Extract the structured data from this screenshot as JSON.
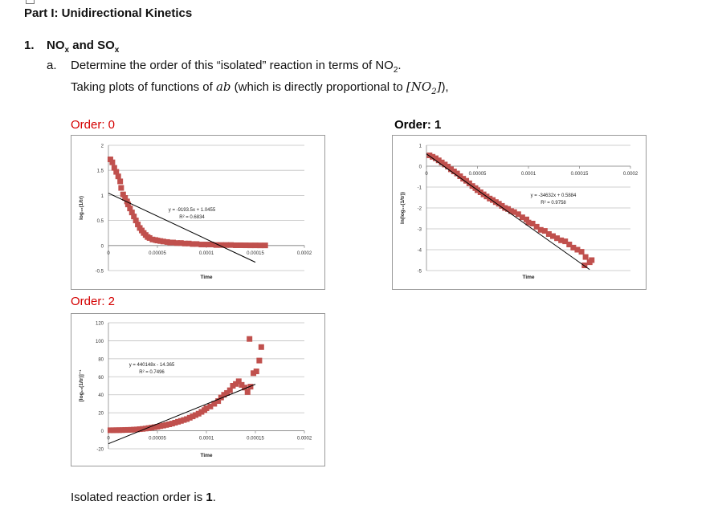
{
  "document": {
    "part_title": "Part I: Unidirectional Kinetics",
    "q1_number": "1.",
    "q1_title_prefix": "NO",
    "q1_title_sub1": "x",
    "q1_title_mid": " and SO",
    "q1_title_sub2": "x",
    "qa_label": "a.",
    "qa_text_prefix": "Determine the order of this “isolated” reaction in terms of NO",
    "qa_text_sub": "2",
    "qa_text_suffix": ".",
    "qa_line2_prefix": "Taking plots of functions of ",
    "qa_line2_math": "ab",
    "qa_line2_mid": " (which is directly proportional to ",
    "qa_line2_math2": "[NO",
    "qa_line2_math2_sub": "2",
    "qa_line2_math2_end": "]",
    "qa_line2_suffix": "),",
    "order0_label": "Order: 0",
    "order1_label": "Order: 1",
    "order2_label": "Order: 2",
    "conclusion_prefix": "Isolated reaction order is ",
    "conclusion_value": "1",
    "conclusion_suffix": "."
  },
  "chart_data": [
    {
      "id": "order0",
      "type": "scatter",
      "title": "",
      "xlabel": "Time",
      "ylabel": "log₁₀(1/tr)",
      "xlim": [
        0,
        0.0002
      ],
      "ylim": [
        -0.5,
        2
      ],
      "xticks": [
        0,
        5e-05,
        0.0001,
        0.00015,
        0.0002
      ],
      "xtick_labels": [
        "0",
        "0.00005",
        "0.0001",
        "0.00015",
        "0.0002"
      ],
      "yticks": [
        -0.5,
        0,
        0.5,
        1,
        1.5,
        2
      ],
      "ytick_labels": [
        "-0.5",
        "0",
        "0.5",
        "1",
        "1.5",
        "2"
      ],
      "grid": "horizontal",
      "marker_color": "#c0504d",
      "trendline": {
        "slope": -9193.5,
        "intercept": 1.0455,
        "x_range": [
          0,
          0.00015
        ]
      },
      "equation": "y = -9193.5x + 1.0455",
      "r2": "R² = 0.6834",
      "points": [
        [
          2e-06,
          1.72
        ],
        [
          4e-06,
          1.66
        ],
        [
          6e-06,
          1.55
        ],
        [
          8e-06,
          1.47
        ],
        [
          1e-05,
          1.38
        ],
        [
          1.2e-05,
          1.28
        ],
        [
          1.3e-05,
          1.15
        ],
        [
          1.5e-05,
          1.02
        ],
        [
          1.7e-05,
          0.95
        ],
        [
          1.9e-05,
          0.88
        ],
        [
          2e-05,
          0.82
        ],
        [
          2.2e-05,
          0.74
        ],
        [
          2.4e-05,
          0.66
        ],
        [
          2.6e-05,
          0.58
        ],
        [
          2.8e-05,
          0.5
        ],
        [
          3e-05,
          0.42
        ],
        [
          3.2e-05,
          0.35
        ],
        [
          3.4e-05,
          0.3
        ],
        [
          3.6e-05,
          0.25
        ],
        [
          3.8e-05,
          0.21
        ],
        [
          4e-05,
          0.17
        ],
        [
          4.2e-05,
          0.15
        ],
        [
          4.5e-05,
          0.12
        ],
        [
          4.8e-05,
          0.11
        ],
        [
          5e-05,
          0.1
        ],
        [
          5.3e-05,
          0.09
        ],
        [
          5.6e-05,
          0.08
        ],
        [
          6e-05,
          0.07
        ],
        [
          6.3e-05,
          0.06
        ],
        [
          6.6e-05,
          0.06
        ],
        [
          7e-05,
          0.05
        ],
        [
          7.4e-05,
          0.05
        ],
        [
          7.8e-05,
          0.04
        ],
        [
          8.2e-05,
          0.04
        ],
        [
          8.6e-05,
          0.03
        ],
        [
          9e-05,
          0.03
        ],
        [
          9.5e-05,
          0.02
        ],
        [
          0.0001,
          0.02
        ],
        [
          0.000105,
          0.02
        ],
        [
          0.00011,
          0.01
        ],
        [
          0.000115,
          0.01
        ],
        [
          0.00012,
          0.01
        ],
        [
          0.000125,
          0.01
        ],
        [
          0.00013,
          0.005
        ],
        [
          0.000135,
          0.005
        ],
        [
          0.00014,
          0.004
        ],
        [
          0.000145,
          0.003
        ],
        [
          0.00015,
          0.003
        ],
        [
          0.000155,
          0.002
        ],
        [
          0.00016,
          0.002
        ]
      ]
    },
    {
      "id": "order1",
      "type": "scatter",
      "title": "",
      "xlabel": "Time",
      "ylabel": "ln(log₁₀(1/tr))",
      "xlim": [
        0,
        0.0002
      ],
      "ylim": [
        -5,
        1
      ],
      "xticks": [
        0,
        5e-05,
        0.0001,
        0.00015,
        0.0002
      ],
      "xtick_labels": [
        "0",
        "0.00005",
        "0.0001",
        "0.00015",
        "0.0002"
      ],
      "yticks": [
        -5,
        -4,
        -3,
        -2,
        -1,
        0,
        1
      ],
      "ytick_labels": [
        "-5",
        "-4",
        "-3",
        "-2",
        "-1",
        "0",
        "1"
      ],
      "grid": "horizontal",
      "marker_color": "#c0504d",
      "trendline": {
        "slope": -34632,
        "intercept": 0.5884,
        "x_range": [
          0,
          0.00016
        ]
      },
      "equation": "y = -34632x + 0.5884",
      "r2": "R² = 0.9758",
      "points": [
        [
          3e-06,
          0.52
        ],
        [
          6e-06,
          0.45
        ],
        [
          9e-06,
          0.38
        ],
        [
          1.2e-05,
          0.28
        ],
        [
          1.5e-05,
          0.18
        ],
        [
          1.8e-05,
          0.08
        ],
        [
          2.1e-05,
          -0.02
        ],
        [
          2.4e-05,
          -0.15
        ],
        [
          2.7e-05,
          -0.25
        ],
        [
          3e-05,
          -0.35
        ],
        [
          3.3e-05,
          -0.48
        ],
        [
          3.6e-05,
          -0.6
        ],
        [
          3.9e-05,
          -0.7
        ],
        [
          4.2e-05,
          -0.82
        ],
        [
          4.5e-05,
          -0.95
        ],
        [
          4.8e-05,
          -1.05
        ],
        [
          5e-05,
          -1.15
        ],
        [
          5.3e-05,
          -1.25
        ],
        [
          5.6e-05,
          -1.35
        ],
        [
          5.9e-05,
          -1.45
        ],
        [
          6.2e-05,
          -1.55
        ],
        [
          6.5e-05,
          -1.62
        ],
        [
          6.8e-05,
          -1.72
        ],
        [
          7.1e-05,
          -1.8
        ],
        [
          7.4e-05,
          -1.9
        ],
        [
          7.7e-05,
          -2.0
        ],
        [
          8e-05,
          -2.05
        ],
        [
          8.3e-05,
          -2.15
        ],
        [
          8.6e-05,
          -2.2
        ],
        [
          9e-05,
          -2.3
        ],
        [
          9.4e-05,
          -2.45
        ],
        [
          9.8e-05,
          -2.55
        ],
        [
          0.0001,
          -2.7
        ],
        [
          0.000104,
          -2.75
        ],
        [
          0.000108,
          -2.9
        ],
        [
          0.000112,
          -3.05
        ],
        [
          0.000116,
          -3.1
        ],
        [
          0.00012,
          -3.25
        ],
        [
          0.000124,
          -3.35
        ],
        [
          0.000128,
          -3.45
        ],
        [
          0.000132,
          -3.55
        ],
        [
          0.000136,
          -3.6
        ],
        [
          0.00014,
          -3.75
        ],
        [
          0.000144,
          -3.9
        ],
        [
          0.000148,
          -4.0
        ],
        [
          0.000152,
          -4.1
        ],
        [
          0.000156,
          -4.35
        ],
        [
          0.00016,
          -4.6
        ],
        [
          0.000155,
          -4.75
        ],
        [
          0.000162,
          -4.5
        ]
      ]
    },
    {
      "id": "order2",
      "type": "scatter",
      "title": "",
      "xlabel": "Time",
      "ylabel": "[log₁₀(1/tr)]⁻¹",
      "xlim": [
        0,
        0.0002
      ],
      "ylim": [
        -20,
        120
      ],
      "xticks": [
        0,
        5e-05,
        0.0001,
        0.00015,
        0.0002
      ],
      "xtick_labels": [
        "0",
        "0.00005",
        "0.0001",
        "0.00015",
        "0.0002"
      ],
      "yticks": [
        -20,
        0,
        20,
        40,
        60,
        80,
        100,
        120
      ],
      "ytick_labels": [
        "-20",
        "0",
        "20",
        "40",
        "60",
        "80",
        "100",
        "120"
      ],
      "grid": "horizontal",
      "marker_color": "#c0504d",
      "trendline": {
        "slope": 440148,
        "intercept": -14.365,
        "x_range": [
          0,
          0.00015
        ]
      },
      "equation": "y = 440148x - 14.365",
      "r2": "R² = 0.7496",
      "points": [
        [
          2e-06,
          0.6
        ],
        [
          5e-06,
          0.6
        ],
        [
          8e-06,
          0.7
        ],
        [
          1.1e-05,
          0.7
        ],
        [
          1.4e-05,
          0.8
        ],
        [
          1.7e-05,
          0.9
        ],
        [
          2e-05,
          1.0
        ],
        [
          2.3e-05,
          1.1
        ],
        [
          2.6e-05,
          1.3
        ],
        [
          2.9e-05,
          1.5
        ],
        [
          3.2e-05,
          1.8
        ],
        [
          3.5e-05,
          2.1
        ],
        [
          3.8e-05,
          2.5
        ],
        [
          4.1e-05,
          3.0
        ],
        [
          4.4e-05,
          3.5
        ],
        [
          4.7e-05,
          4.0
        ],
        [
          5e-05,
          4.5
        ],
        [
          5.3e-05,
          5.2
        ],
        [
          5.6e-05,
          5.8
        ],
        [
          5.9e-05,
          6.5
        ],
        [
          6.2e-05,
          7.2
        ],
        [
          6.5e-05,
          8.0
        ],
        [
          6.8e-05,
          9.0
        ],
        [
          7.1e-05,
          10.0
        ],
        [
          7.4e-05,
          11.0
        ],
        [
          7.7e-05,
          12.0
        ],
        [
          8e-05,
          13.0
        ],
        [
          8.3e-05,
          14.5
        ],
        [
          8.6e-05,
          16.0
        ],
        [
          8.9e-05,
          17.5
        ],
        [
          9.2e-05,
          19.0
        ],
        [
          9.5e-05,
          21.0
        ],
        [
          9.8e-05,
          23.0
        ],
        [
          0.0001,
          25.0
        ],
        [
          0.000104,
          27.0
        ],
        [
          0.000108,
          30.0
        ],
        [
          0.000112,
          33.0
        ],
        [
          0.000115,
          37.0
        ],
        [
          0.000118,
          40.0
        ],
        [
          0.000121,
          42.0
        ],
        [
          0.000124,
          45.0
        ],
        [
          0.000127,
          50.0
        ],
        [
          0.00013,
          52.0
        ],
        [
          0.000133,
          55.0
        ],
        [
          0.000136,
          51.0
        ],
        [
          0.000139,
          48.0
        ],
        [
          0.000142,
          43.0
        ],
        [
          0.000145,
          49.0
        ],
        [
          0.000148,
          64.0
        ],
        [
          0.000151,
          66.0
        ],
        [
          0.000154,
          78.0
        ],
        [
          0.000156,
          93.0
        ],
        [
          0.000144,
          102.0
        ]
      ]
    }
  ]
}
